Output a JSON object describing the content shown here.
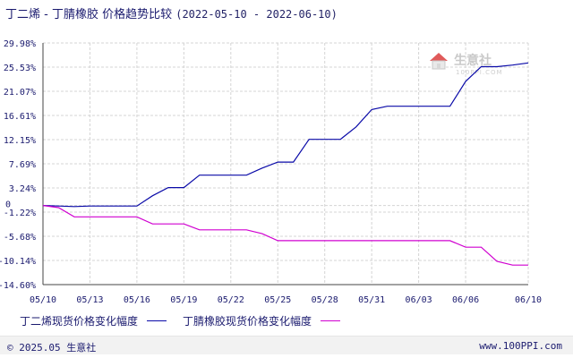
{
  "header": {
    "title": "丁二烯 - 丁腈橡胶 价格趋势比较",
    "date_range": "(2022-05-10 - 2022-06-10)"
  },
  "watermark": {
    "brand": "生意社",
    "url": "100PPI.COM",
    "logo_icon": "house-logo-icon"
  },
  "legend": [
    {
      "label": "丁二烯现货价格变化幅度",
      "color": "#0a0aa8"
    },
    {
      "label": "丁腈橡胶现货价格变化幅度",
      "color": "#d000d0"
    }
  ],
  "footer": {
    "copyright": "© 2025.05 生意社",
    "site": "www.100PPI.com"
  },
  "chart_data": {
    "type": "line",
    "ylim": [
      -14.6,
      29.98
    ],
    "yticks": [
      "29.98%",
      "25.53%",
      "21.07%",
      "16.61%",
      "12.15%",
      "7.69%",
      "3.24%",
      "-1.22%",
      "-5.68%",
      "-10.14%",
      "-14.60%"
    ],
    "ytick_values": [
      29.98,
      25.53,
      21.07,
      16.61,
      12.15,
      7.69,
      3.24,
      -1.22,
      -5.68,
      -10.14,
      -14.6
    ],
    "zero_label": "0",
    "xticks": [
      "05/10",
      "05/13",
      "05/16",
      "05/19",
      "05/22",
      "05/25",
      "05/28",
      "05/31",
      "06/03",
      "06/06",
      "06/10"
    ],
    "xtick_days": [
      0,
      3,
      6,
      9,
      12,
      15,
      18,
      21,
      24,
      27,
      31
    ],
    "xlim": [
      0,
      31
    ],
    "grid": true,
    "series": [
      {
        "name": "丁二烯现货价格变化幅度",
        "color": "#0a0aa8",
        "x": [
          0,
          1,
          2,
          3,
          4,
          5,
          6,
          7,
          8,
          9,
          10,
          11,
          12,
          13,
          14,
          15,
          16,
          17,
          18,
          19,
          20,
          21,
          22,
          23,
          24,
          25,
          26,
          27,
          28,
          29,
          30,
          31
        ],
        "y": [
          0,
          -0.1,
          -0.2,
          -0.1,
          -0.1,
          -0.1,
          -0.1,
          1.8,
          3.3,
          3.3,
          5.6,
          5.6,
          5.6,
          5.6,
          6.9,
          8.0,
          8.0,
          12.2,
          12.2,
          12.2,
          14.5,
          17.7,
          18.3,
          18.3,
          18.3,
          18.3,
          18.3,
          22.9,
          25.6,
          25.6,
          25.9,
          26.3
        ]
      },
      {
        "name": "丁腈橡胶现货价格变化幅度",
        "color": "#d000d0",
        "x": [
          0,
          1,
          2,
          3,
          4,
          5,
          6,
          7,
          8,
          9,
          10,
          11,
          12,
          13,
          14,
          15,
          16,
          17,
          18,
          19,
          20,
          21,
          22,
          23,
          24,
          25,
          26,
          27,
          28,
          29,
          30,
          31
        ],
        "y": [
          0,
          -0.4,
          -2.1,
          -2.1,
          -2.1,
          -2.1,
          -2.1,
          -3.4,
          -3.4,
          -3.4,
          -4.5,
          -4.5,
          -4.5,
          -4.5,
          -5.2,
          -6.5,
          -6.5,
          -6.5,
          -6.5,
          -6.5,
          -6.5,
          -6.5,
          -6.5,
          -6.5,
          -6.5,
          -6.5,
          -6.5,
          -7.7,
          -7.7,
          -10.3,
          -11.0,
          -11.0
        ]
      }
    ]
  }
}
